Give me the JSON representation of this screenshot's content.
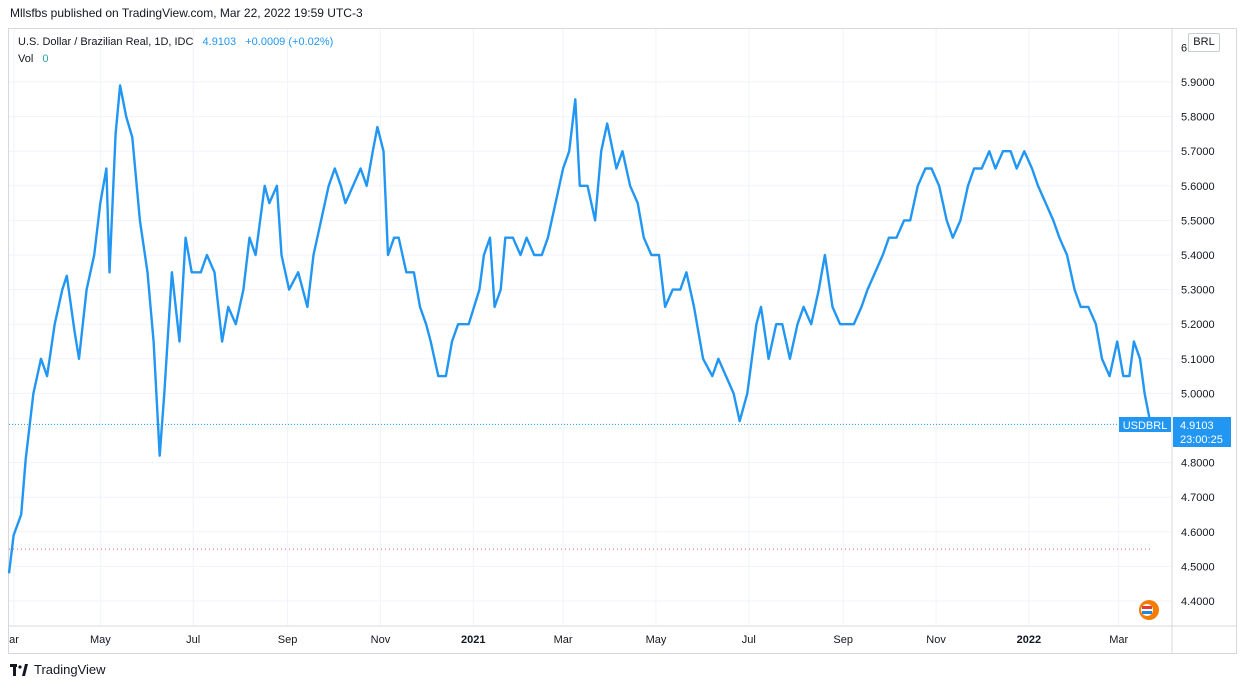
{
  "header": {
    "publisher_text": "Mllsfbs published on TradingView.com, Mar 22, 2022 19:59 UTC-3"
  },
  "legend": {
    "symbol_text": "U.S. Dollar / Brazilian Real, 1D, IDC",
    "last_value": "4.9103",
    "change": "+0.0009 (+0.02%)",
    "vol_label": "Vol",
    "vol_value": "0"
  },
  "currency_button": "BRL",
  "price_label": {
    "symbol": "USDBRL",
    "value": "4.9103",
    "countdown": "23:00:25"
  },
  "footer": {
    "brand": "TradingView"
  },
  "colors": {
    "line": "#2196f3",
    "grid": "#f0f3fa",
    "last_price": "#2196f3"
  },
  "chart_data": {
    "type": "line",
    "title": "U.S. Dollar / Brazilian Real, 1D, IDC",
    "y_ticks": [
      "4.4000",
      "4.5000",
      "4.6000",
      "4.7000",
      "4.8000",
      "4.9000",
      "5.0000",
      "5.1000",
      "5.2000",
      "5.3000",
      "5.4000",
      "5.5000",
      "5.6000",
      "5.7000",
      "5.8000",
      "5.9000"
    ],
    "y_top_partial_label": "6.",
    "x_ticks": [
      "ar",
      "May",
      "Jul",
      "Sep",
      "Nov",
      "2021",
      "Mar",
      "May",
      "Jul",
      "Sep",
      "Nov",
      "2022",
      "Mar"
    ],
    "ylim": [
      4.37,
      6.05
    ],
    "x_range": [
      "2020-03-02",
      "2022-04-05"
    ],
    "grid": true,
    "last_price": 4.9103,
    "reference_level": 4.55,
    "series": [
      {
        "name": "USDBRL",
        "points": [
          [
            "2020-03-02",
            4.48
          ],
          [
            "2020-03-05",
            4.59
          ],
          [
            "2020-03-10",
            4.65
          ],
          [
            "2020-03-13",
            4.81
          ],
          [
            "2020-03-18",
            5.0
          ],
          [
            "2020-03-23",
            5.1
          ],
          [
            "2020-03-27",
            5.05
          ],
          [
            "2020-04-01",
            5.2
          ],
          [
            "2020-04-06",
            5.3
          ],
          [
            "2020-04-09",
            5.34
          ],
          [
            "2020-04-14",
            5.18
          ],
          [
            "2020-04-17",
            5.1
          ],
          [
            "2020-04-22",
            5.3
          ],
          [
            "2020-04-27",
            5.4
          ],
          [
            "2020-05-01",
            5.55
          ],
          [
            "2020-05-05",
            5.65
          ],
          [
            "2020-05-07",
            5.35
          ],
          [
            "2020-05-11",
            5.75
          ],
          [
            "2020-05-14",
            5.89
          ],
          [
            "2020-05-18",
            5.8
          ],
          [
            "2020-05-22",
            5.74
          ],
          [
            "2020-05-27",
            5.5
          ],
          [
            "2020-06-01",
            5.35
          ],
          [
            "2020-06-05",
            5.15
          ],
          [
            "2020-06-09",
            4.82
          ],
          [
            "2020-06-12",
            5.0
          ],
          [
            "2020-06-17",
            5.35
          ],
          [
            "2020-06-22",
            5.15
          ],
          [
            "2020-06-26",
            5.45
          ],
          [
            "2020-06-30",
            5.35
          ],
          [
            "2020-07-06",
            5.35
          ],
          [
            "2020-07-10",
            5.4
          ],
          [
            "2020-07-15",
            5.35
          ],
          [
            "2020-07-20",
            5.15
          ],
          [
            "2020-07-24",
            5.25
          ],
          [
            "2020-07-29",
            5.2
          ],
          [
            "2020-08-03",
            5.3
          ],
          [
            "2020-08-07",
            5.45
          ],
          [
            "2020-08-11",
            5.4
          ],
          [
            "2020-08-17",
            5.6
          ],
          [
            "2020-08-20",
            5.55
          ],
          [
            "2020-08-25",
            5.6
          ],
          [
            "2020-08-28",
            5.4
          ],
          [
            "2020-09-02",
            5.3
          ],
          [
            "2020-09-08",
            5.35
          ],
          [
            "2020-09-14",
            5.25
          ],
          [
            "2020-09-18",
            5.4
          ],
          [
            "2020-09-23",
            5.5
          ],
          [
            "2020-09-28",
            5.6
          ],
          [
            "2020-10-02",
            5.65
          ],
          [
            "2020-10-06",
            5.6
          ],
          [
            "2020-10-09",
            5.55
          ],
          [
            "2020-10-14",
            5.6
          ],
          [
            "2020-10-19",
            5.65
          ],
          [
            "2020-10-23",
            5.6
          ],
          [
            "2020-10-27",
            5.7
          ],
          [
            "2020-10-30",
            5.77
          ],
          [
            "2020-11-03",
            5.7
          ],
          [
            "2020-11-06",
            5.4
          ],
          [
            "2020-11-10",
            5.45
          ],
          [
            "2020-11-13",
            5.45
          ],
          [
            "2020-11-18",
            5.35
          ],
          [
            "2020-11-23",
            5.35
          ],
          [
            "2020-11-27",
            5.25
          ],
          [
            "2020-12-01",
            5.2
          ],
          [
            "2020-12-04",
            5.15
          ],
          [
            "2020-12-09",
            5.05
          ],
          [
            "2020-12-14",
            5.05
          ],
          [
            "2020-12-18",
            5.15
          ],
          [
            "2020-12-22",
            5.2
          ],
          [
            "2020-12-29",
            5.2
          ],
          [
            "2021-01-05",
            5.3
          ],
          [
            "2021-01-08",
            5.4
          ],
          [
            "2021-01-12",
            5.45
          ],
          [
            "2021-01-15",
            5.25
          ],
          [
            "2021-01-19",
            5.3
          ],
          [
            "2021-01-22",
            5.45
          ],
          [
            "2021-01-27",
            5.45
          ],
          [
            "2021-02-01",
            5.4
          ],
          [
            "2021-02-05",
            5.45
          ],
          [
            "2021-02-10",
            5.4
          ],
          [
            "2021-02-15",
            5.4
          ],
          [
            "2021-02-19",
            5.45
          ],
          [
            "2021-02-24",
            5.55
          ],
          [
            "2021-03-01",
            5.65
          ],
          [
            "2021-03-05",
            5.7
          ],
          [
            "2021-03-09",
            5.85
          ],
          [
            "2021-03-12",
            5.6
          ],
          [
            "2021-03-17",
            5.6
          ],
          [
            "2021-03-22",
            5.5
          ],
          [
            "2021-03-26",
            5.7
          ],
          [
            "2021-03-30",
            5.78
          ],
          [
            "2021-04-05",
            5.65
          ],
          [
            "2021-04-09",
            5.7
          ],
          [
            "2021-04-14",
            5.6
          ],
          [
            "2021-04-19",
            5.55
          ],
          [
            "2021-04-23",
            5.45
          ],
          [
            "2021-04-28",
            5.4
          ],
          [
            "2021-05-03",
            5.4
          ],
          [
            "2021-05-07",
            5.25
          ],
          [
            "2021-05-12",
            5.3
          ],
          [
            "2021-05-17",
            5.3
          ],
          [
            "2021-05-21",
            5.35
          ],
          [
            "2021-05-26",
            5.25
          ],
          [
            "2021-06-01",
            5.1
          ],
          [
            "2021-06-07",
            5.05
          ],
          [
            "2021-06-11",
            5.1
          ],
          [
            "2021-06-16",
            5.05
          ],
          [
            "2021-06-21",
            5.0
          ],
          [
            "2021-06-25",
            4.92
          ],
          [
            "2021-06-30",
            5.0
          ],
          [
            "2021-07-06",
            5.2
          ],
          [
            "2021-07-09",
            5.25
          ],
          [
            "2021-07-14",
            5.1
          ],
          [
            "2021-07-19",
            5.2
          ],
          [
            "2021-07-23",
            5.2
          ],
          [
            "2021-07-28",
            5.1
          ],
          [
            "2021-08-02",
            5.2
          ],
          [
            "2021-08-06",
            5.25
          ],
          [
            "2021-08-11",
            5.2
          ],
          [
            "2021-08-16",
            5.3
          ],
          [
            "2021-08-20",
            5.4
          ],
          [
            "2021-08-25",
            5.25
          ],
          [
            "2021-08-30",
            5.2
          ],
          [
            "2021-09-03",
            5.2
          ],
          [
            "2021-09-08",
            5.2
          ],
          [
            "2021-09-13",
            5.25
          ],
          [
            "2021-09-17",
            5.3
          ],
          [
            "2021-09-22",
            5.35
          ],
          [
            "2021-09-27",
            5.4
          ],
          [
            "2021-10-01",
            5.45
          ],
          [
            "2021-10-06",
            5.45
          ],
          [
            "2021-10-11",
            5.5
          ],
          [
            "2021-10-15",
            5.5
          ],
          [
            "2021-10-20",
            5.6
          ],
          [
            "2021-10-25",
            5.65
          ],
          [
            "2021-10-29",
            5.65
          ],
          [
            "2021-11-03",
            5.6
          ],
          [
            "2021-11-08",
            5.5
          ],
          [
            "2021-11-12",
            5.45
          ],
          [
            "2021-11-17",
            5.5
          ],
          [
            "2021-11-22",
            5.6
          ],
          [
            "2021-11-26",
            5.65
          ],
          [
            "2021-12-01",
            5.65
          ],
          [
            "2021-12-06",
            5.7
          ],
          [
            "2021-12-10",
            5.65
          ],
          [
            "2021-12-15",
            5.7
          ],
          [
            "2021-12-20",
            5.7
          ],
          [
            "2021-12-24",
            5.65
          ],
          [
            "2021-12-29",
            5.7
          ],
          [
            "2022-01-03",
            5.65
          ],
          [
            "2022-01-07",
            5.6
          ],
          [
            "2022-01-12",
            5.55
          ],
          [
            "2022-01-17",
            5.5
          ],
          [
            "2022-01-21",
            5.45
          ],
          [
            "2022-01-26",
            5.4
          ],
          [
            "2022-01-31",
            5.3
          ],
          [
            "2022-02-04",
            5.25
          ],
          [
            "2022-02-09",
            5.25
          ],
          [
            "2022-02-14",
            5.2
          ],
          [
            "2022-02-18",
            5.1
          ],
          [
            "2022-02-23",
            5.05
          ],
          [
            "2022-02-28",
            5.15
          ],
          [
            "2022-03-04",
            5.05
          ],
          [
            "2022-03-08",
            5.05
          ],
          [
            "2022-03-11",
            5.15
          ],
          [
            "2022-03-15",
            5.1
          ],
          [
            "2022-03-18",
            5.0
          ],
          [
            "2022-03-22",
            4.91
          ]
        ]
      }
    ]
  }
}
